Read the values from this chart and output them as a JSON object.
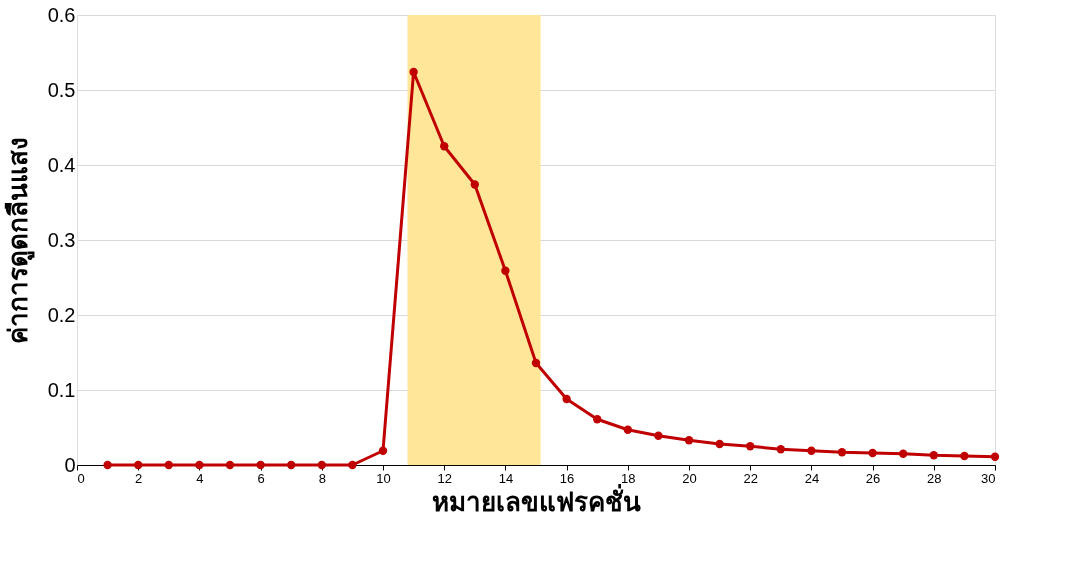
{
  "chart_data": {
    "type": "line",
    "xlabel": "หมายเลขแฟรคชั่น",
    "ylabel": "ค่าการดูดกลืนแสง",
    "x": [
      1,
      2,
      3,
      4,
      5,
      6,
      7,
      8,
      9,
      10,
      11,
      12,
      13,
      14,
      15,
      16,
      17,
      18,
      19,
      20,
      21,
      22,
      23,
      24,
      25,
      26,
      27,
      28,
      29,
      30
    ],
    "series": [
      {
        "color": "#c00000",
        "values": [
          0,
          0,
          0,
          0,
          0,
          0,
          0,
          0,
          0,
          0.019,
          0.524,
          0.425,
          0.374,
          0.259,
          0.136,
          0.088,
          0.061,
          0.047,
          0.039,
          0.033,
          0.028,
          0.025,
          0.021,
          0.019,
          0.017,
          0.016,
          0.015,
          0.013,
          0.012,
          0.011
        ]
      }
    ],
    "xlim": [
      0,
      30
    ],
    "xticks": [
      0,
      2,
      4,
      6,
      8,
      10,
      12,
      14,
      16,
      18,
      20,
      22,
      24,
      26,
      28,
      30
    ],
    "ylim": [
      0,
      0.6
    ],
    "yticks": [
      0,
      0.1,
      0.2,
      0.3,
      0.4,
      0.5,
      0.6
    ],
    "bands": [
      {
        "axis": "x",
        "from": 10.8,
        "to": 15.15,
        "color": "#ffe699"
      }
    ],
    "grid": "y",
    "marker": "circle",
    "line_style": "solid"
  }
}
